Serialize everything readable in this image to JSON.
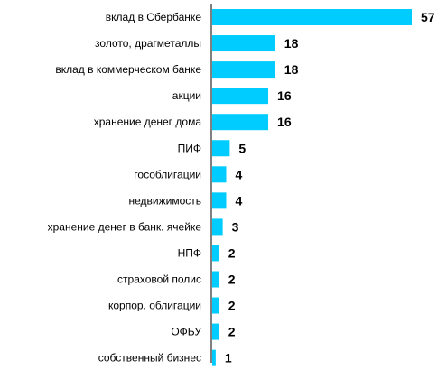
{
  "chart_data": {
    "type": "bar",
    "orientation": "horizontal",
    "categories": [
      "вклад в Сбербанке",
      "золото, драгметаллы",
      "вклад в коммерческом банке",
      "акции",
      "хранение денег дома",
      "ПИФ",
      "гособлигации",
      "недвижимость",
      "хранение денег в банк. ячейке",
      "НПФ",
      "страховой полис",
      "корпор. облигации",
      "ОФБУ",
      "собственный бизнес"
    ],
    "values": [
      57,
      18,
      18,
      16,
      16,
      5,
      4,
      4,
      3,
      2,
      2,
      2,
      2,
      1
    ],
    "xlim": [
      0,
      57
    ],
    "grid": false,
    "legend": "none",
    "bar_color": "#00ccff"
  }
}
